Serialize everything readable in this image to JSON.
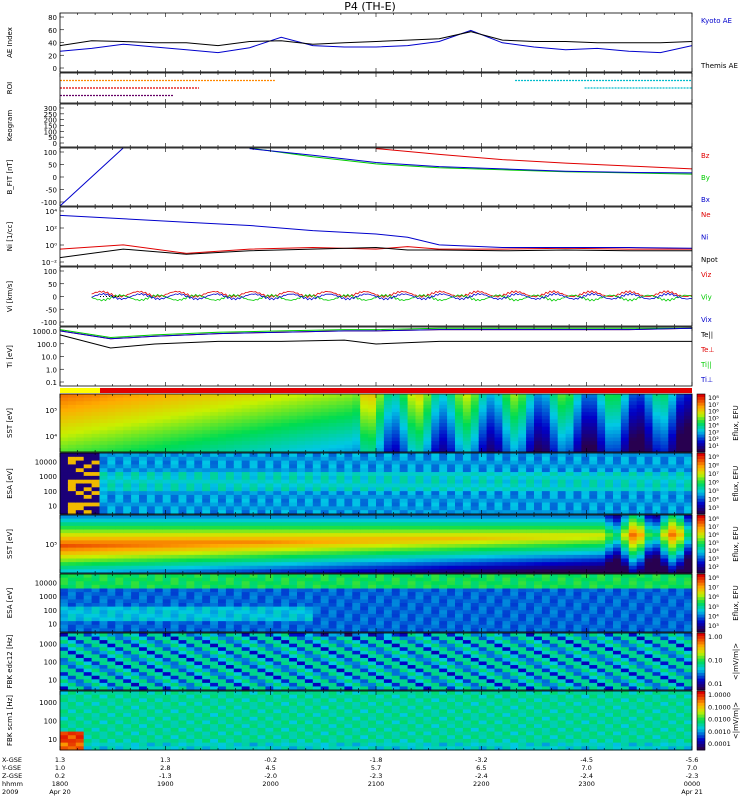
{
  "page": {
    "title": "P4 (TH-E)"
  },
  "colors": {
    "black": "#000000",
    "red": "#e00000",
    "green": "#00cc00",
    "blue": "#0000cc",
    "cyan": "#00bbcc",
    "orange": "#ff8800",
    "purple": "#660066"
  },
  "chart_data": [
    {
      "id": "ae_index",
      "type": "line",
      "ylabel": "AE Index",
      "yticks": [
        "0",
        "20",
        "40",
        "60",
        "80"
      ],
      "ylim": [
        0,
        85
      ],
      "x": [
        0,
        0.05,
        0.1,
        0.15,
        0.2,
        0.25,
        0.3,
        0.35,
        0.4,
        0.45,
        0.5,
        0.55,
        0.6,
        0.65,
        0.7,
        0.75,
        0.8,
        0.85,
        0.9,
        0.95,
        1.0
      ],
      "series": [
        {
          "name": "Kyoto AE",
          "color": "blue",
          "values": [
            30,
            34,
            40,
            36,
            32,
            28,
            35,
            50,
            38,
            36,
            36,
            38,
            44,
            60,
            42,
            36,
            32,
            34,
            30,
            28,
            38
          ]
        },
        {
          "name": "Themis AE",
          "color": "black",
          "values": [
            38,
            45,
            44,
            42,
            42,
            38,
            44,
            45,
            40,
            42,
            44,
            46,
            48,
            58,
            46,
            44,
            44,
            42,
            42,
            42,
            44
          ]
        }
      ]
    },
    {
      "id": "roi",
      "type": "line",
      "ylabel": "ROI",
      "yticks": [],
      "ylim": [
        0,
        4
      ],
      "series": [
        {
          "name": "",
          "color": "orange",
          "x": [
            0.0,
            0.34
          ],
          "level": 3
        },
        {
          "name": "",
          "color": "red",
          "x": [
            0.0,
            0.22
          ],
          "level": 2
        },
        {
          "name": "",
          "color": "purple",
          "x": [
            0.0,
            0.18
          ],
          "level": 1
        },
        {
          "name": "",
          "color": "cyan",
          "x": [
            0.72,
            1.0
          ],
          "level": 3
        },
        {
          "name": "",
          "color": "cyan",
          "x": [
            0.83,
            1.0
          ],
          "level": 2
        }
      ]
    },
    {
      "id": "keogram",
      "type": "line",
      "ylabel": "Keogram",
      "yticks": [
        "0",
        "50",
        "100",
        "150",
        "200",
        "250",
        "300"
      ],
      "ylim": [
        0,
        300
      ],
      "series": []
    },
    {
      "id": "b_field",
      "type": "line",
      "ylabel": "B_FIT [nT]",
      "yticks": [
        "-100",
        "-50",
        "0",
        "50",
        "100"
      ],
      "ylim": [
        -100,
        100
      ],
      "x": [
        0.0,
        0.1,
        0.2,
        0.3,
        0.4,
        0.5,
        0.6,
        0.7,
        0.8,
        0.9,
        1.0
      ],
      "series": [
        {
          "name": "Bz",
          "color": "red",
          "values": [
            null,
            null,
            null,
            null,
            null,
            98,
            78,
            60,
            48,
            38,
            28
          ]
        },
        {
          "name": "By",
          "color": "green",
          "values": [
            null,
            null,
            null,
            100,
            70,
            45,
            32,
            25,
            18,
            14,
            10
          ]
        },
        {
          "name": "Bx",
          "color": "blue",
          "values": [
            -100,
            100,
            null,
            98,
            75,
            50,
            36,
            28,
            20,
            16,
            14
          ]
        }
      ],
      "legend_position": "right"
    },
    {
      "id": "density",
      "type": "line",
      "ylabel": "Ni [1/cc]",
      "yticks": [
        "10⁻²",
        "10⁰",
        "10²",
        "10⁴"
      ],
      "ylim": [
        -2,
        5
      ],
      "log": true,
      "x": [
        0.0,
        0.1,
        0.2,
        0.3,
        0.4,
        0.5,
        0.55,
        0.6,
        0.7,
        0.8,
        0.9,
        1.0
      ],
      "series": [
        {
          "name": "Ne",
          "color": "red",
          "values": [
            0,
            0.5,
            -0.5,
            0,
            0.2,
            0,
            0.3,
            0,
            0,
            0.1,
            0,
            0
          ]
        },
        {
          "name": "Ni",
          "color": "blue",
          "values": [
            4,
            3.6,
            3.2,
            2.8,
            2.2,
            1.8,
            1.4,
            0.5,
            0.2,
            0.2,
            0.2,
            0.1
          ]
        },
        {
          "name": "Npot",
          "color": "black",
          "values": [
            -1,
            0,
            -0.6,
            -0.2,
            0,
            0.2,
            -0.1,
            -0.1,
            -0.2,
            -0.1,
            -0.2,
            -0.2
          ]
        }
      ],
      "legend_position": "right"
    },
    {
      "id": "velocity",
      "type": "line",
      "ylabel": "Vi [km/s]",
      "yticks": [
        "-100",
        "-50",
        "0",
        "50",
        "100"
      ],
      "ylim": [
        -120,
        120
      ],
      "x": [
        0.05,
        0.2,
        0.4,
        0.6,
        0.8,
        1.0
      ],
      "series": [
        {
          "name": "Viz",
          "color": "red",
          "values": [
            10,
            10,
            10,
            10,
            10,
            10
          ]
        },
        {
          "name": "Viy",
          "color": "green",
          "values": [
            -5,
            -5,
            -5,
            -5,
            -5,
            -5
          ]
        },
        {
          "name": "Vix",
          "color": "blue",
          "values": [
            0,
            0,
            0,
            0,
            0,
            0
          ]
        }
      ],
      "legend_position": "right"
    },
    {
      "id": "temperature",
      "type": "line",
      "ylabel": "Ti [eV]",
      "yticks": [
        "0.1",
        "1.0",
        "10.0",
        "100.0",
        "1000.0"
      ],
      "ylim": [
        -1.2,
        3.3
      ],
      "log": true,
      "x": [
        0.0,
        0.08,
        0.15,
        0.25,
        0.35,
        0.45,
        0.5,
        0.6,
        0.7,
        0.8,
        0.9,
        1.0
      ],
      "series": [
        {
          "name": "Te||",
          "color": "black",
          "values": [
            2.7,
            1.7,
            2.0,
            2.2,
            2.2,
            2.3,
            2.0,
            2.2,
            2.2,
            2.2,
            2.2,
            2.2
          ]
        },
        {
          "name": "Te⊥",
          "color": "red",
          "values": [
            3.0,
            2.4,
            2.6,
            2.8,
            2.9,
            3.0,
            3.0,
            3.1,
            3.1,
            3.1,
            3.1,
            3.2
          ]
        },
        {
          "name": "Ti||",
          "color": "green",
          "values": [
            3.1,
            2.5,
            2.7,
            2.9,
            3.0,
            3.1,
            3.1,
            3.2,
            3.2,
            3.2,
            3.2,
            3.2
          ]
        },
        {
          "name": "Ti⊥",
          "color": "blue",
          "values": [
            3.0,
            2.4,
            2.6,
            2.8,
            2.9,
            3.0,
            3.0,
            3.1,
            3.1,
            3.1,
            3.1,
            3.2
          ]
        }
      ],
      "legend_position": "right"
    },
    {
      "id": "sst_electron",
      "type": "heatmap",
      "ylabel": "SST [eV]",
      "yticks": [
        "10⁵",
        "10⁴"
      ],
      "colorbar_label": "Eflux, EFU",
      "colorbar_ticks": [
        "10⁸",
        "10⁷",
        "10⁶",
        "10⁵",
        "10⁴",
        "10³",
        "10²",
        "10¹"
      ]
    },
    {
      "id": "esa_electron",
      "type": "heatmap",
      "ylabel": "ESA [eV]",
      "yticks": [
        "10000",
        "1000",
        "100",
        "10"
      ],
      "colorbar_label": "Eflux, EFU",
      "colorbar_ticks": [
        "10⁹",
        "10⁸",
        "10⁷",
        "10⁶",
        "10⁵",
        "10⁴",
        "10³"
      ]
    },
    {
      "id": "sst_ion",
      "type": "heatmap",
      "ylabel": "SST [eV]",
      "yticks": [
        "10⁵"
      ],
      "colorbar_label": "Eflux, EFU",
      "colorbar_ticks": [
        "10⁸",
        "10⁷",
        "10⁶",
        "10⁵",
        "10⁴",
        "10³",
        "10²"
      ]
    },
    {
      "id": "esa_ion",
      "type": "heatmap",
      "ylabel": "ESA [eV]",
      "yticks": [
        "10000",
        "1000",
        "100",
        "10"
      ],
      "colorbar_label": "Eflux, EFU",
      "colorbar_ticks": [
        "10⁸",
        "10⁷",
        "10⁶",
        "10⁵",
        "10⁴",
        "10³"
      ]
    },
    {
      "id": "fbk_edc",
      "type": "heatmap",
      "ylabel": "FBK edc12 [Hz]",
      "yticks": [
        "1000",
        "100",
        "10"
      ],
      "colorbar_label": "<|mV/m|>",
      "colorbar_ticks": [
        "1.00",
        "0.10",
        "0.01"
      ]
    },
    {
      "id": "fbk_scm",
      "type": "heatmap",
      "ylabel": "FBK scm1 [Hz]",
      "yticks": [
        "1000",
        "100",
        "10"
      ],
      "colorbar_label": "<|mV/m|>",
      "colorbar_ticks": [
        "1.0000",
        "0.1000",
        "0.0100",
        "0.0010",
        "0.0001"
      ]
    }
  ],
  "x_axis": {
    "row_labels": [
      "X-GSE",
      "Y-GSE",
      "Z-GSE",
      "hhmm",
      "2009"
    ],
    "ticks": [
      {
        "x": "1.3",
        "y": "1.0",
        "z": "0.2",
        "time": "1800",
        "date": "Apr 20"
      },
      {
        "x": "1.3",
        "y": "2.8",
        "z": "-1.3",
        "time": "1900",
        "date": ""
      },
      {
        "x": "-0.2",
        "y": "4.5",
        "z": "-2.0",
        "time": "2000",
        "date": ""
      },
      {
        "x": "-1.8",
        "y": "5.7",
        "z": "-2.3",
        "time": "2100",
        "date": ""
      },
      {
        "x": "-3.2",
        "y": "6.5",
        "z": "-2.4",
        "time": "2200",
        "date": ""
      },
      {
        "x": "-4.5",
        "y": "7.0",
        "z": "-2.4",
        "time": "2300",
        "date": ""
      },
      {
        "x": "-5.6",
        "y": "7.0",
        "z": "-2.3",
        "time": "0000",
        "date": "Apr 21"
      }
    ]
  }
}
